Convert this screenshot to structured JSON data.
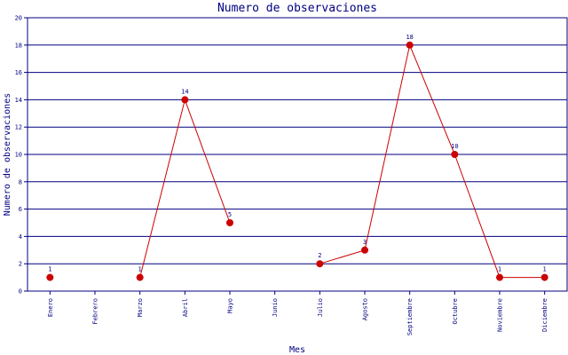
{
  "chart_data": {
    "type": "line",
    "title": "Numero de observaciones",
    "xlabel": "Mes",
    "ylabel": "Numero de observaciones",
    "ylim": [
      0,
      20
    ],
    "yticks": [
      0,
      2,
      4,
      6,
      8,
      10,
      12,
      14,
      16,
      18,
      20
    ],
    "grid": true,
    "categories": [
      "Enero",
      "Febrero",
      "Marzo",
      "Abril",
      "Mayo",
      "Junio",
      "Julio",
      "Agosto",
      "Septiembre",
      "Octubre",
      "Noviembre",
      "Diciembre"
    ],
    "values": [
      1,
      null,
      1,
      14,
      5,
      null,
      2,
      3,
      18,
      10,
      1,
      1
    ],
    "colors": {
      "line": "#cc0000",
      "marker": "#cc0000",
      "grid": "#000080",
      "text": "#000080"
    }
  }
}
